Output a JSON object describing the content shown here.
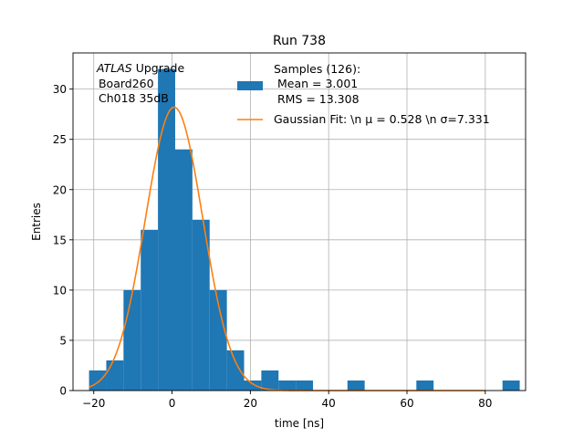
{
  "chart_data": {
    "type": "bar",
    "title": "Run 738",
    "xlabel": "time [ns]",
    "ylabel": "Entries",
    "xlim": [
      -25.3,
      90.3
    ],
    "ylim": [
      0,
      33.6
    ],
    "xticks": [
      -20,
      0,
      20,
      40,
      60,
      80
    ],
    "yticks": [
      0,
      5,
      10,
      15,
      20,
      25,
      30
    ],
    "xtick_labels": [
      "−20",
      "0",
      "20",
      "40",
      "60",
      "80"
    ],
    "ytick_labels": [
      "0",
      "5",
      "10",
      "15",
      "20",
      "25",
      "30"
    ],
    "grid": true,
    "colors": {
      "histogram": "#1f77b4",
      "fit": "#ff7f0e"
    },
    "annotation": {
      "line1_italic": "ATLAS",
      "line1_rest": " Upgrade",
      "line2": " Board260",
      "line3": " Ch018 35dB"
    },
    "legend": {
      "placement": "top-right",
      "entries": [
        {
          "line1": "Samples (126):",
          "line2": " Mean = 3.001",
          "line3": " RMS = 13.308"
        },
        {
          "text": "Gaussian Fit: \\n μ = 0.528 \\n σ=7.331"
        }
      ]
    },
    "histogram": {
      "bin_edges": [
        -21.2,
        -16.8,
        -12.4,
        -8.0,
        -3.6,
        0.8,
        5.2,
        9.6,
        14.0,
        18.4,
        22.8,
        27.2,
        31.6,
        36.0,
        40.4,
        44.8,
        49.2,
        53.6,
        58.0,
        62.4,
        66.8,
        71.2,
        75.6,
        80.0,
        84.4
      ],
      "counts": [
        2,
        3,
        10,
        16,
        32,
        24,
        17,
        10,
        4,
        1,
        2,
        1,
        1,
        0,
        0,
        1,
        0,
        0,
        0,
        1,
        0,
        0,
        0,
        0,
        1
      ]
    },
    "fit": {
      "amplitude": 28.2,
      "mu": 0.528,
      "sigma": 7.331,
      "x_range": [
        -21.2,
        80.0
      ]
    }
  }
}
